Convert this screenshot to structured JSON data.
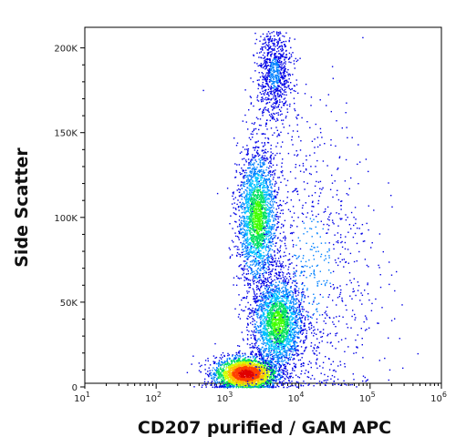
{
  "chart_data": {
    "type": "scatter",
    "subtype": "flow-cytometry density dot plot",
    "xlabel": "CD207 purified / GAM APC",
    "ylabel": "Side Scatter",
    "x_scale": "log",
    "xlim": [
      10,
      1000000
    ],
    "x_ticks": [
      {
        "value": 10,
        "base": "10",
        "exp": "1"
      },
      {
        "value": 100,
        "base": "10",
        "exp": "2"
      },
      {
        "value": 1000,
        "base": "10",
        "exp": "3"
      },
      {
        "value": 10000,
        "base": "10",
        "exp": "4"
      },
      {
        "value": 100000,
        "base": "10",
        "exp": "5"
      },
      {
        "value": 1000000,
        "base": "10",
        "exp": "6"
      }
    ],
    "ylim": [
      0,
      210000
    ],
    "y_ticks": [
      {
        "value": 0,
        "label": "0"
      },
      {
        "value": 50000,
        "label": "50K"
      },
      {
        "value": 100000,
        "label": "100K"
      },
      {
        "value": 150000,
        "label": "150K"
      },
      {
        "value": 200000,
        "label": "200K"
      }
    ],
    "grid": false,
    "legend": "none",
    "density_colors": [
      "#0000e6",
      "#0080ff",
      "#00c0ff",
      "#00e060",
      "#40ff00",
      "#d0ff00",
      "#ffc000",
      "#ff4000",
      "#e00000"
    ],
    "populations": [
      {
        "center_x": 1800,
        "center_y": 8000,
        "spread_log_x": 0.22,
        "spread_y": 5000,
        "density": "peak"
      },
      {
        "center_x": 2600,
        "center_y": 100000,
        "spread_log_x": 0.14,
        "spread_y": 20000,
        "density": "high"
      },
      {
        "center_x": 5000,
        "center_y": 38000,
        "spread_log_x": 0.18,
        "spread_y": 14000,
        "density": "high"
      },
      {
        "center_x": 15000,
        "center_y": 70000,
        "spread_log_x": 0.45,
        "spread_y": 50000,
        "density": "sparse"
      },
      {
        "center_x": 4500,
        "center_y": 185000,
        "spread_log_x": 0.12,
        "spread_y": 15000,
        "density": "sparse"
      }
    ]
  }
}
